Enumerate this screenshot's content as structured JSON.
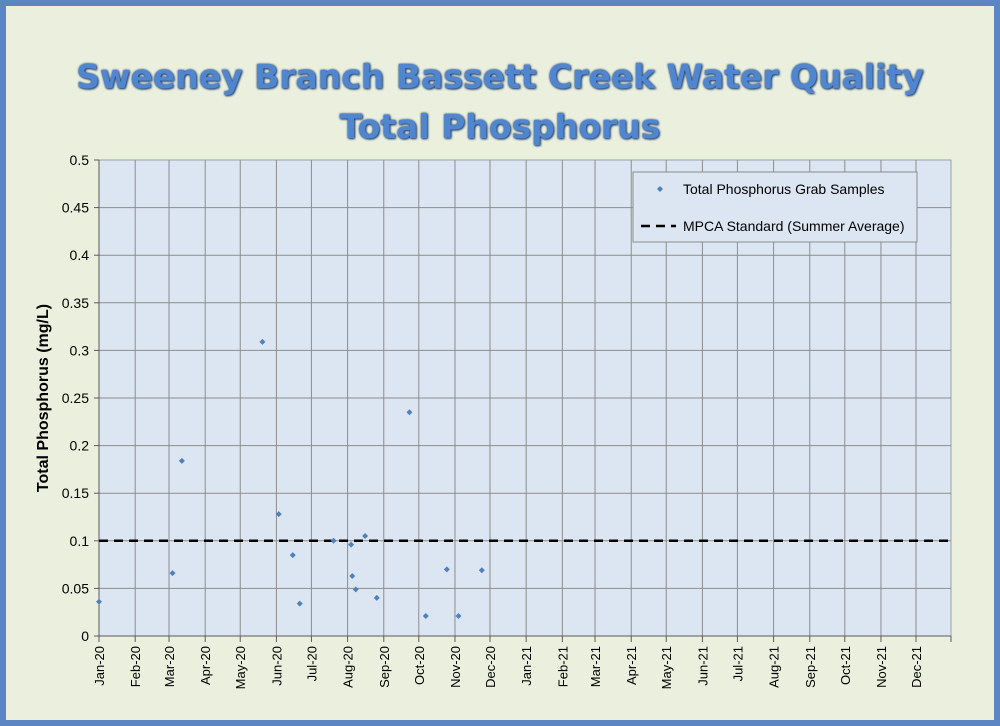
{
  "chart_data": {
    "type": "scatter",
    "title": [
      "Sweeney Branch Bassett Creek Water Quality",
      "Total Phosphorus"
    ],
    "xlabel": "",
    "ylabel": "Total Phosphorus (mg/L)",
    "ylim": [
      0,
      0.5
    ],
    "yticks": [
      "0",
      "0.05",
      "0.1",
      "0.15",
      "0.2",
      "0.25",
      "0.3",
      "0.35",
      "0.4",
      "0.45",
      "0.5"
    ],
    "xticks": [
      "Jan-20",
      "Feb-20",
      "Mar-20",
      "Apr-20",
      "May-20",
      "Jun-20",
      "Jul-20",
      "Aug-20",
      "Sep-20",
      "Oct-20",
      "Nov-20",
      "Dec-20",
      "Jan-21",
      "Feb-21",
      "Mar-21",
      "Apr-21",
      "May-21",
      "Jun-21",
      "Jul-21",
      "Aug-21",
      "Sep-21",
      "Oct-21",
      "Nov-21",
      "Dec-21"
    ],
    "xlim": [
      "2020-01-01",
      "2021-12-31"
    ],
    "grid": true,
    "legend": "top-right",
    "series": [
      {
        "name": "Total Phosphorus Grab Samples",
        "color": "#4f81bd",
        "points": [
          {
            "x": "2020-01-01",
            "y": 0.036
          },
          {
            "x": "2020-03-04",
            "y": 0.066
          },
          {
            "x": "2020-03-12",
            "y": 0.184
          },
          {
            "x": "2020-05-20",
            "y": 0.309
          },
          {
            "x": "2020-06-03",
            "y": 0.128
          },
          {
            "x": "2020-06-15",
            "y": 0.085
          },
          {
            "x": "2020-06-21",
            "y": 0.034
          },
          {
            "x": "2020-07-20",
            "y": 0.1
          },
          {
            "x": "2020-08-04",
            "y": 0.096
          },
          {
            "x": "2020-08-05",
            "y": 0.063
          },
          {
            "x": "2020-08-08",
            "y": 0.049
          },
          {
            "x": "2020-08-16",
            "y": 0.105
          },
          {
            "x": "2020-08-26",
            "y": 0.04
          },
          {
            "x": "2020-09-23",
            "y": 0.235
          },
          {
            "x": "2020-10-07",
            "y": 0.021
          },
          {
            "x": "2020-10-25",
            "y": 0.07
          },
          {
            "x": "2020-11-04",
            "y": 0.021
          },
          {
            "x": "2020-11-24",
            "y": 0.069
          }
        ]
      },
      {
        "name": "MPCA Standard (Summer Average)",
        "color": "#000000",
        "style": "dashed",
        "y": 0.1
      }
    ]
  }
}
